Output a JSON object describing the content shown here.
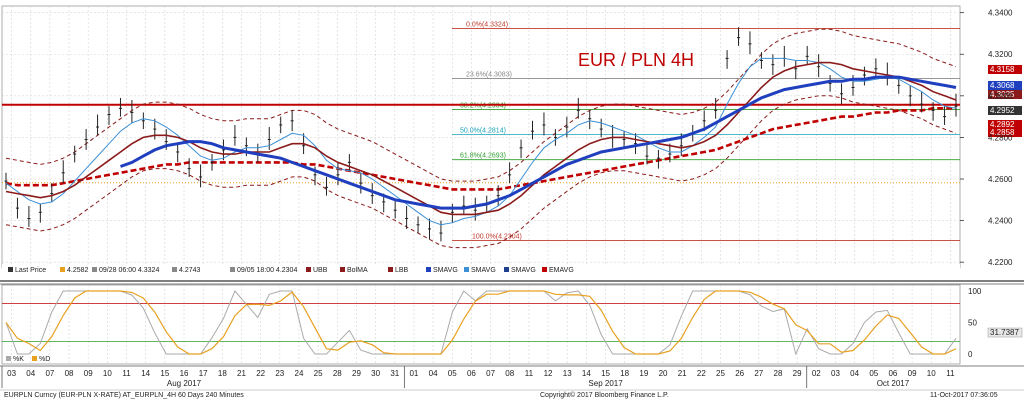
{
  "chart_data": {
    "type": "line",
    "title": "EUR / PLN 4H",
    "ylim": [
      4.2172,
      4.3432
    ],
    "y_ticks": [
      "4.3400",
      "4.3200",
      "4.3000",
      "4.2800",
      "4.2600",
      "4.2400",
      "4.2200"
    ],
    "osc_ticks": [
      "100",
      "50",
      "0"
    ],
    "osc_value": "31.7387",
    "right_labels": [
      {
        "text": "4.3158",
        "value": 4.3158,
        "color": "#c00000"
      },
      {
        "text": "4.3068",
        "value": 4.3068,
        "color": "#1f3fbf"
      },
      {
        "text": "4.3025",
        "value": 4.3025,
        "color": "#8b1a1a"
      },
      {
        "text": "4.2952",
        "value": 4.2952,
        "color": "#333333"
      },
      {
        "text": "4.2892",
        "value": 4.2892,
        "color": "#c00000"
      },
      {
        "text": "4.2858",
        "value": 4.2858,
        "color": "#c00000"
      }
    ],
    "fib_levels": [
      {
        "label": "0.0%(4.3324)",
        "value": 4.3324,
        "color": "#c0392b"
      },
      {
        "label": "23.6%(4.3083)",
        "value": 4.3083,
        "color": "#888888"
      },
      {
        "label": "38.2%(4.2934)",
        "value": 4.2934,
        "color": "#2e9e2e"
      },
      {
        "label": "50.0%(4.2814)",
        "value": 4.2814,
        "color": "#17a2b8"
      },
      {
        "label": "61.8%(4.2693)",
        "value": 4.2693,
        "color": "#2e9e2e"
      },
      {
        "label": "100.0%(4.2304)",
        "value": 4.2304,
        "color": "#c0392b"
      }
    ],
    "x_days": [
      "03",
      "04",
      "07",
      "08",
      "09",
      "10",
      "11",
      "14",
      "15",
      "16",
      "17",
      "18",
      "21",
      "22",
      "23",
      "24",
      "25",
      "28",
      "29",
      "30",
      "31",
      "01",
      "04",
      "05",
      "06",
      "07",
      "08",
      "11",
      "12",
      "13",
      "14",
      "15",
      "18",
      "19",
      "20",
      "21",
      "22",
      "25",
      "26",
      "27",
      "28",
      "29",
      "02",
      "03",
      "04",
      "05",
      "06",
      "09",
      "10",
      "11"
    ],
    "months": [
      {
        "label": "Aug 2017",
        "index": 9
      },
      {
        "label": "Sep 2017",
        "index": 31
      },
      {
        "label": "Oct 2017",
        "index": 46
      }
    ],
    "legend": [
      {
        "label": "Last Price",
        "color": "#333333"
      },
      {
        "label": "4.2582",
        "color": "#e8a020"
      },
      {
        "label": "09/28 06:00 4.3324",
        "color": "#888888"
      },
      {
        "label": "4.2743",
        "color": "#888888"
      },
      {
        "label": "09/05 18:00 4.2304",
        "color": "#888888"
      },
      {
        "label": "UBB",
        "color": "#8b1a1a"
      },
      {
        "label": "BolMA",
        "color": "#8b1a1a"
      },
      {
        "label": "LBB",
        "color": "#8b1a1a"
      },
      {
        "label": "SMAVG",
        "color": "#1f3fbf"
      },
      {
        "label": "SMAVG",
        "color": "#3a8fd6"
      },
      {
        "label": "SMAVG",
        "color": "#1f3f8f"
      },
      {
        "label": "EMAVG",
        "color": "#c00000"
      }
    ],
    "osc_legend": [
      {
        "label": "%K",
        "color": "#aaaaaa"
      },
      {
        "label": "%D",
        "color": "#e8a020"
      }
    ],
    "price": [
      4.259,
      4.246,
      4.241,
      4.244,
      4.253,
      4.263,
      4.272,
      4.279,
      4.285,
      4.291,
      4.294,
      4.292,
      4.288,
      4.284,
      4.278,
      4.273,
      4.265,
      4.261,
      4.268,
      4.274,
      4.28,
      4.276,
      4.272,
      4.279,
      4.286,
      4.288,
      4.276,
      4.262,
      4.256,
      4.262,
      4.268,
      4.258,
      4.252,
      4.249,
      4.245,
      4.241,
      4.238,
      4.236,
      4.234,
      4.244,
      4.247,
      4.245,
      4.248,
      4.252,
      4.262,
      4.275,
      4.283,
      4.286,
      4.28,
      4.285,
      4.293,
      4.289,
      4.284,
      4.28,
      4.279,
      4.277,
      4.271,
      4.27,
      4.272,
      4.276,
      4.282,
      4.288,
      4.293,
      4.318,
      4.328,
      4.325,
      4.317,
      4.315,
      4.318,
      4.313,
      4.319,
      4.314,
      4.306,
      4.301,
      4.304,
      4.31,
      4.313,
      4.31,
      4.305,
      4.3,
      4.296,
      4.293,
      4.29,
      4.295
    ],
    "sma_fast": [
      4.258,
      4.254,
      4.25,
      4.248,
      4.249,
      4.253,
      4.259,
      4.265,
      4.271,
      4.277,
      4.283,
      4.287,
      4.289,
      4.288,
      4.285,
      4.281,
      4.276,
      4.271,
      4.269,
      4.27,
      4.273,
      4.275,
      4.275,
      4.276,
      4.279,
      4.282,
      4.281,
      4.276,
      4.269,
      4.265,
      4.264,
      4.263,
      4.26,
      4.256,
      4.252,
      4.248,
      4.244,
      4.24,
      4.238,
      4.239,
      4.241,
      4.242,
      4.244,
      4.247,
      4.252,
      4.26,
      4.268,
      4.275,
      4.279,
      4.282,
      4.286,
      4.288,
      4.287,
      4.285,
      4.283,
      4.281,
      4.278,
      4.275,
      4.273,
      4.273,
      4.276,
      4.28,
      4.285,
      4.296,
      4.306,
      4.314,
      4.318,
      4.318,
      4.318,
      4.317,
      4.317,
      4.316,
      4.313,
      4.309,
      4.307,
      4.307,
      4.308,
      4.309,
      4.308,
      4.305,
      4.302,
      4.298,
      4.295,
      4.294
    ],
    "bol_ma": [
      4.254,
      4.253,
      4.252,
      4.251,
      4.252,
      4.254,
      4.257,
      4.261,
      4.265,
      4.269,
      4.273,
      4.277,
      4.28,
      4.281,
      4.281,
      4.28,
      4.278,
      4.275,
      4.273,
      4.272,
      4.272,
      4.273,
      4.273,
      4.273,
      4.275,
      4.277,
      4.277,
      4.275,
      4.271,
      4.268,
      4.266,
      4.264,
      4.262,
      4.259,
      4.256,
      4.253,
      4.25,
      4.247,
      4.244,
      4.243,
      4.243,
      4.243,
      4.244,
      4.245,
      4.248,
      4.252,
      4.257,
      4.262,
      4.266,
      4.27,
      4.274,
      4.277,
      4.279,
      4.28,
      4.28,
      4.279,
      4.278,
      4.277,
      4.276,
      4.275,
      4.276,
      4.278,
      4.281,
      4.286,
      4.292,
      4.298,
      4.304,
      4.309,
      4.312,
      4.314,
      4.315,
      4.316,
      4.316,
      4.315,
      4.313,
      4.312,
      4.311,
      4.31,
      4.309,
      4.307,
      4.305,
      4.302,
      4.3,
      4.298
    ],
    "sma_mid": [
      null,
      null,
      null,
      null,
      null,
      null,
      null,
      null,
      null,
      null,
      4.266,
      4.268,
      4.271,
      4.274,
      4.276,
      4.277,
      4.278,
      4.278,
      4.277,
      4.275,
      4.274,
      4.273,
      4.272,
      4.271,
      4.27,
      4.268,
      4.266,
      4.264,
      4.262,
      4.26,
      4.258,
      4.256,
      4.254,
      4.252,
      4.25,
      4.249,
      4.248,
      4.247,
      4.246,
      4.246,
      4.246,
      4.247,
      4.248,
      4.25,
      4.252,
      4.255,
      4.258,
      4.261,
      4.264,
      4.267,
      4.269,
      4.271,
      4.273,
      4.274,
      4.275,
      4.276,
      4.277,
      4.278,
      4.279,
      4.28,
      4.282,
      4.284,
      4.287,
      4.29,
      4.293,
      4.296,
      4.299,
      4.301,
      4.303,
      4.304,
      4.305,
      4.306,
      4.307,
      4.307,
      4.308,
      4.308,
      4.309,
      4.309,
      4.309,
      4.308,
      4.307,
      4.306,
      4.305,
      4.304
    ],
    "ema_slow": [
      4.258,
      4.257,
      4.257,
      4.257,
      4.257,
      4.258,
      4.259,
      4.26,
      4.261,
      4.262,
      4.263,
      4.264,
      4.265,
      4.266,
      4.267,
      4.267,
      4.268,
      4.268,
      4.268,
      4.268,
      4.268,
      4.268,
      4.268,
      4.268,
      4.268,
      4.268,
      4.267,
      4.267,
      4.266,
      4.265,
      4.264,
      4.263,
      4.262,
      4.261,
      4.26,
      4.259,
      4.258,
      4.257,
      4.256,
      4.255,
      4.255,
      4.255,
      4.255,
      4.255,
      4.256,
      4.257,
      4.258,
      4.259,
      4.26,
      4.261,
      4.262,
      4.263,
      4.264,
      4.265,
      4.266,
      4.267,
      4.268,
      4.269,
      4.27,
      4.271,
      4.272,
      4.273,
      4.274,
      4.276,
      4.278,
      4.28,
      4.282,
      4.284,
      4.285,
      4.286,
      4.287,
      4.288,
      4.289,
      4.29,
      4.29,
      4.291,
      4.292,
      4.292,
      4.293,
      4.293,
      4.293,
      4.294,
      4.294,
      4.294
    ]
  }
}
